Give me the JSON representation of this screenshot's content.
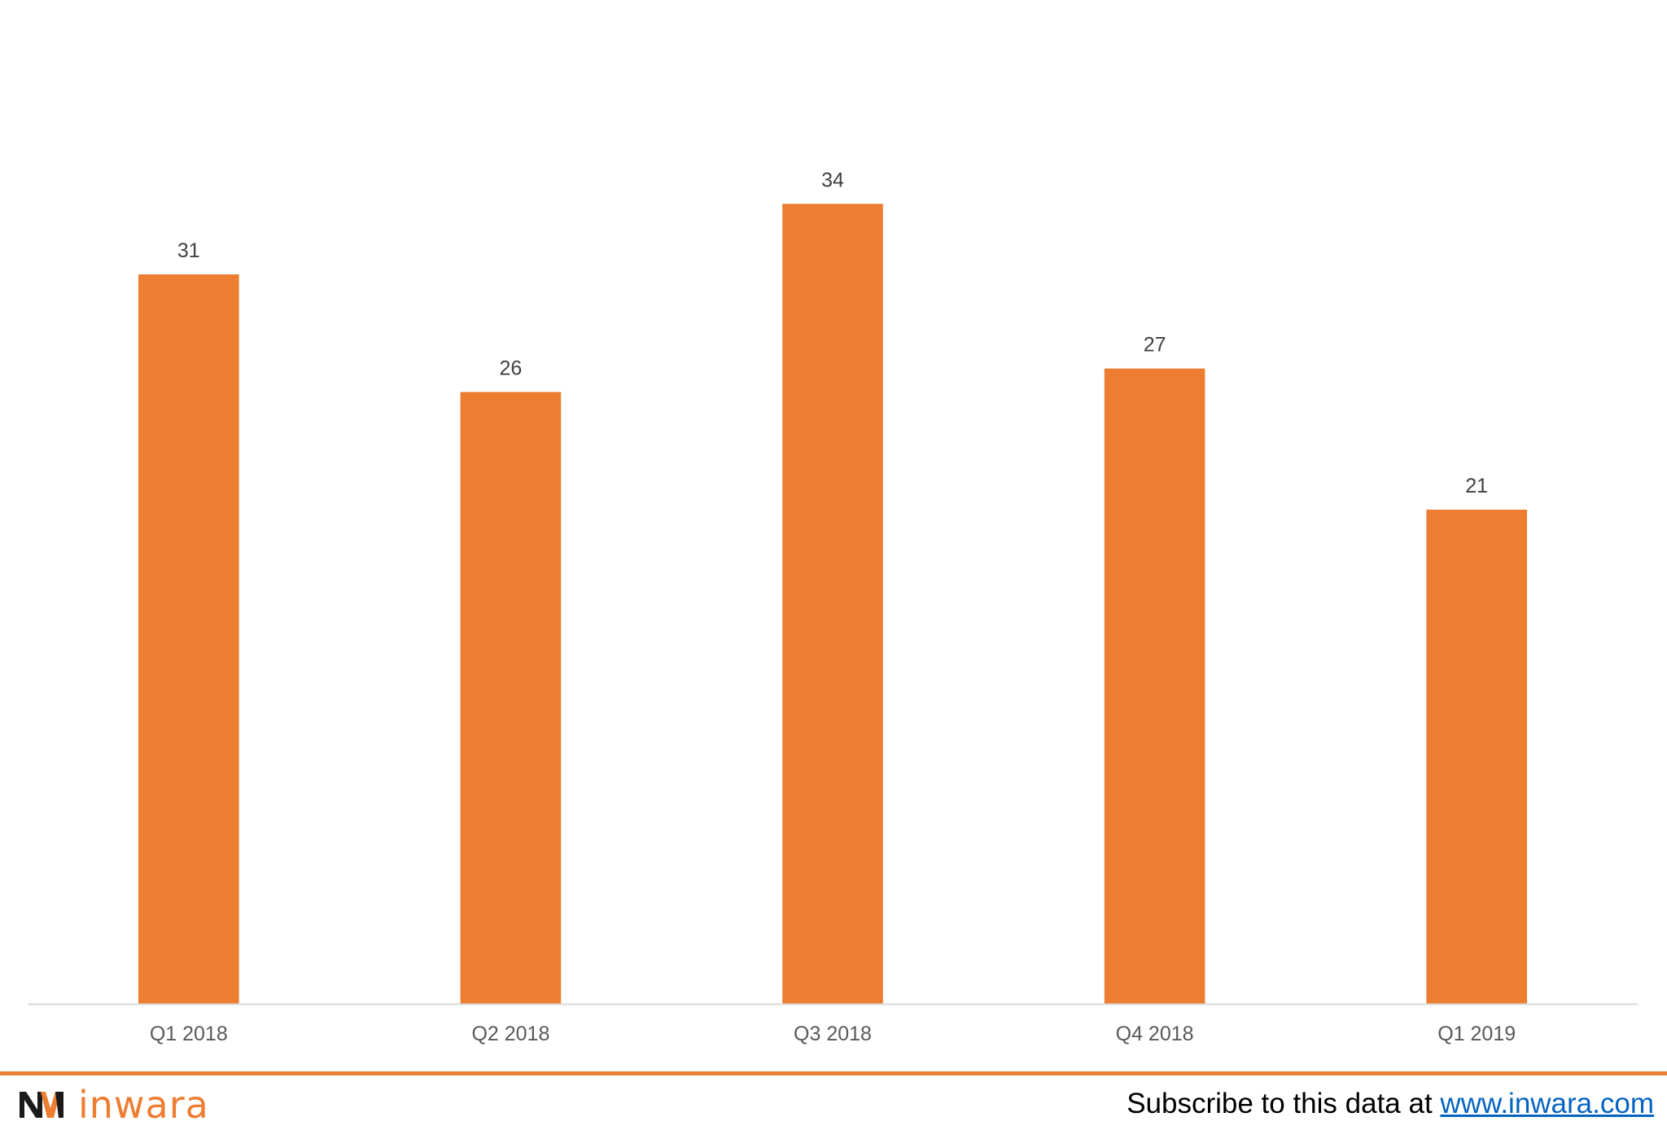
{
  "chart_data": {
    "type": "bar",
    "categories": [
      "Q1 2018",
      "Q2 2018",
      "Q3 2018",
      "Q4 2018",
      "Q1 2019"
    ],
    "values": [
      31,
      26,
      34,
      27,
      21
    ],
    "data_labels": [
      "31",
      "26",
      "34",
      "27",
      "21"
    ],
    "title": "",
    "xlabel": "",
    "ylabel": "",
    "ylim": [
      0,
      41
    ],
    "grid": false,
    "legend": "none",
    "bar_color": "#ed7d31",
    "axis_color": "#d9d9d9"
  },
  "footer": {
    "rule_color": "#ed7d31",
    "logo_text": "inwara",
    "logo_color": "#ed7d31",
    "subscribe_text": "Subscribe to this data at ",
    "subscribe_link": "www.inwara.com"
  }
}
